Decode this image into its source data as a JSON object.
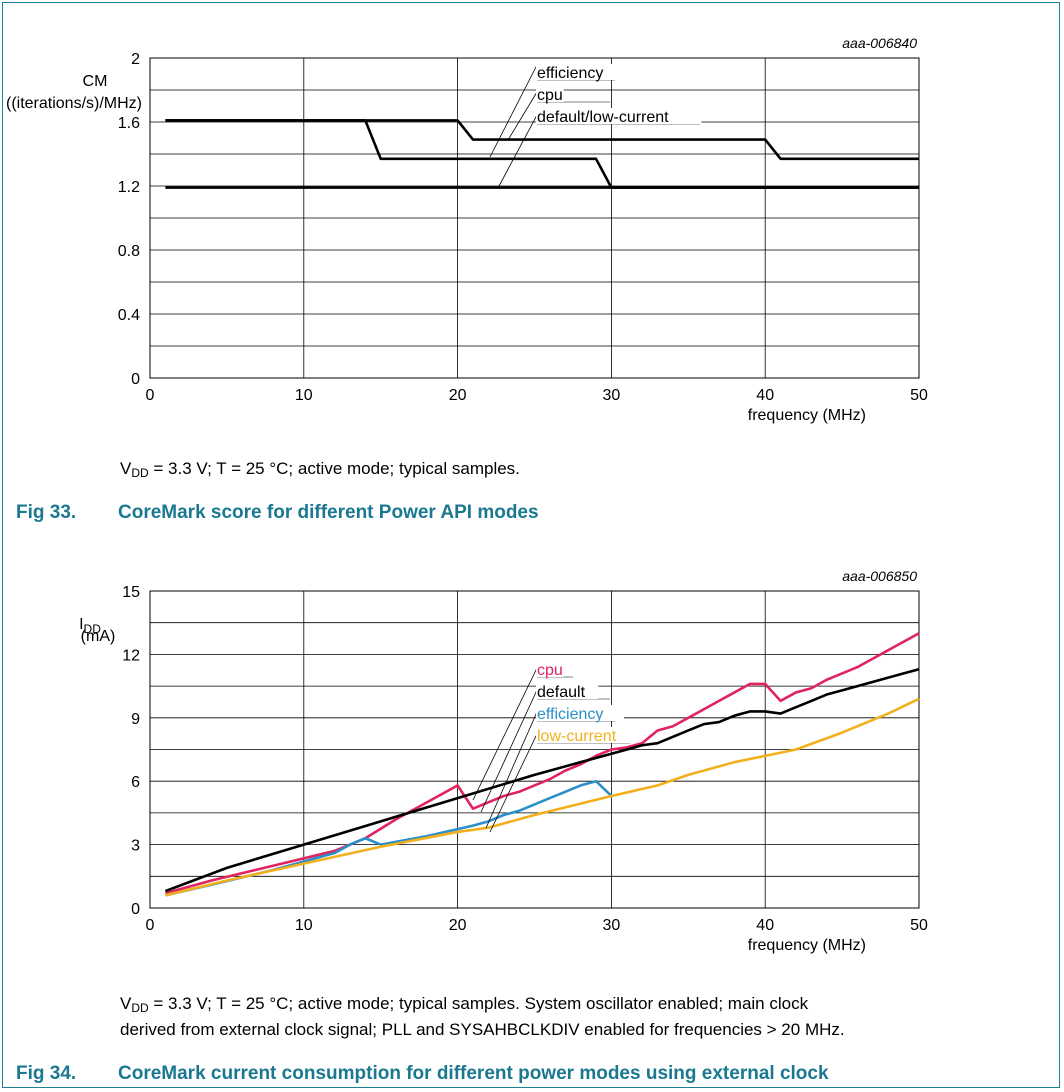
{
  "fig33": {
    "caption_num": "Fig 33.",
    "caption_text": "CoreMark score for different Power API modes",
    "note_pre": "V",
    "note_sub": "DD",
    "note_post": " = 3.3 V; T = 25 °C; active mode; typical samples."
  },
  "fig34": {
    "caption_num": "Fig 34.",
    "caption_text": "CoreMark current consumption for different power modes using external clock",
    "note_pre": "V",
    "note_sub": "DD",
    "note_post": " = 3.3 V; T = 25 °C; active mode; typical samples. System oscillator enabled; main clock\nderived from external clock signal; PLL and SYSAHBCLKDIV enabled for frequencies > 20 MHz."
  },
  "chart_data": [
    {
      "type": "line",
      "code": "aaa-006840",
      "ylabel_lines": [
        "CM",
        "((iterations/s)/MHz)"
      ],
      "xlabel": "frequency (MHz)",
      "xlim": [
        0,
        50
      ],
      "ylim": [
        0,
        2
      ],
      "xticks": [
        0,
        10,
        20,
        30,
        40,
        50
      ],
      "yticks": [
        0,
        0.4,
        0.8,
        1.2,
        1.6,
        2
      ],
      "ytick_labels": [
        "0",
        "0.4",
        "0.8",
        "1.2",
        "1.6",
        "2"
      ],
      "grid": true,
      "series": [
        {
          "name": "efficiency",
          "color": "#000000",
          "x": [
            1,
            20,
            21,
            40,
            41,
            50
          ],
          "y": [
            1.61,
            1.61,
            1.49,
            1.49,
            1.37,
            1.37
          ]
        },
        {
          "name": "cpu",
          "color": "#000000",
          "x": [
            1,
            14,
            15,
            29,
            30,
            50
          ],
          "y": [
            1.61,
            1.61,
            1.37,
            1.37,
            1.19,
            1.19
          ]
        },
        {
          "name": "default/low-current",
          "color": "#000000",
          "x": [
            1,
            50
          ],
          "y": [
            1.19,
            1.19
          ]
        }
      ]
    },
    {
      "type": "line",
      "code": "aaa-006850",
      "ylabel_main": "I",
      "ylabel_sub": "DD",
      "ylabel_unit": "(mA)",
      "xlabel": "frequency (MHz)",
      "xlim": [
        0,
        50
      ],
      "ylim": [
        0,
        15
      ],
      "xticks": [
        0,
        10,
        20,
        30,
        40,
        50
      ],
      "yticks": [
        0,
        3,
        6,
        9,
        12,
        15
      ],
      "ytick_labels": [
        "0",
        "3",
        "6",
        "9",
        "12",
        "15"
      ],
      "grid": true,
      "series": [
        {
          "name": "cpu",
          "color": "#e0245e",
          "x": [
            1,
            4,
            8,
            12,
            14,
            16,
            18,
            20,
            21,
            22,
            23,
            24,
            25,
            26,
            27,
            28,
            29,
            30,
            31,
            32,
            33,
            34,
            35,
            36,
            37,
            38,
            39,
            40,
            41,
            42,
            43,
            44,
            45,
            46,
            47,
            48,
            49,
            50
          ],
          "y": [
            0.7,
            1.3,
            2.0,
            2.7,
            3.3,
            4.2,
            5.0,
            5.8,
            4.7,
            5.0,
            5.3,
            5.5,
            5.8,
            6.1,
            6.5,
            6.8,
            7.2,
            7.5,
            7.6,
            7.8,
            8.4,
            8.6,
            9.0,
            9.4,
            9.8,
            10.2,
            10.6,
            10.6,
            9.8,
            10.2,
            10.4,
            10.8,
            11.1,
            11.4,
            11.8,
            12.2,
            12.6,
            13.0
          ]
        },
        {
          "name": "default",
          "color": "#000000",
          "x": [
            1,
            5,
            10,
            15,
            20,
            25,
            28,
            30,
            32,
            33,
            34,
            35,
            36,
            37,
            38,
            39,
            40,
            41,
            42,
            43,
            44,
            45,
            46,
            47,
            48,
            49,
            50
          ],
          "y": [
            0.8,
            1.9,
            3.0,
            4.1,
            5.2,
            6.3,
            6.9,
            7.3,
            7.7,
            7.8,
            8.1,
            8.4,
            8.7,
            8.8,
            9.1,
            9.3,
            9.3,
            9.2,
            9.5,
            9.8,
            10.1,
            10.3,
            10.5,
            10.7,
            10.9,
            11.1,
            11.3
          ]
        },
        {
          "name": "efficiency",
          "color": "#2b8fc9",
          "x": [
            1,
            4,
            8,
            12,
            13,
            14,
            15,
            18,
            21,
            22,
            23,
            24,
            25,
            26,
            27,
            28,
            29,
            30
          ],
          "y": [
            0.6,
            1.1,
            1.8,
            2.6,
            3.0,
            3.3,
            3.0,
            3.4,
            3.9,
            4.1,
            4.4,
            4.6,
            4.9,
            5.2,
            5.5,
            5.8,
            6.0,
            5.3
          ]
        },
        {
          "name": "low-current",
          "color": "#f2b01e",
          "x": [
            1,
            5,
            10,
            15,
            20,
            22,
            25,
            30,
            33,
            35,
            38,
            40,
            42,
            45,
            48,
            50
          ],
          "y": [
            0.6,
            1.3,
            2.1,
            2.9,
            3.6,
            3.8,
            4.4,
            5.3,
            5.8,
            6.3,
            6.9,
            7.2,
            7.5,
            8.3,
            9.2,
            9.9
          ]
        }
      ]
    }
  ]
}
